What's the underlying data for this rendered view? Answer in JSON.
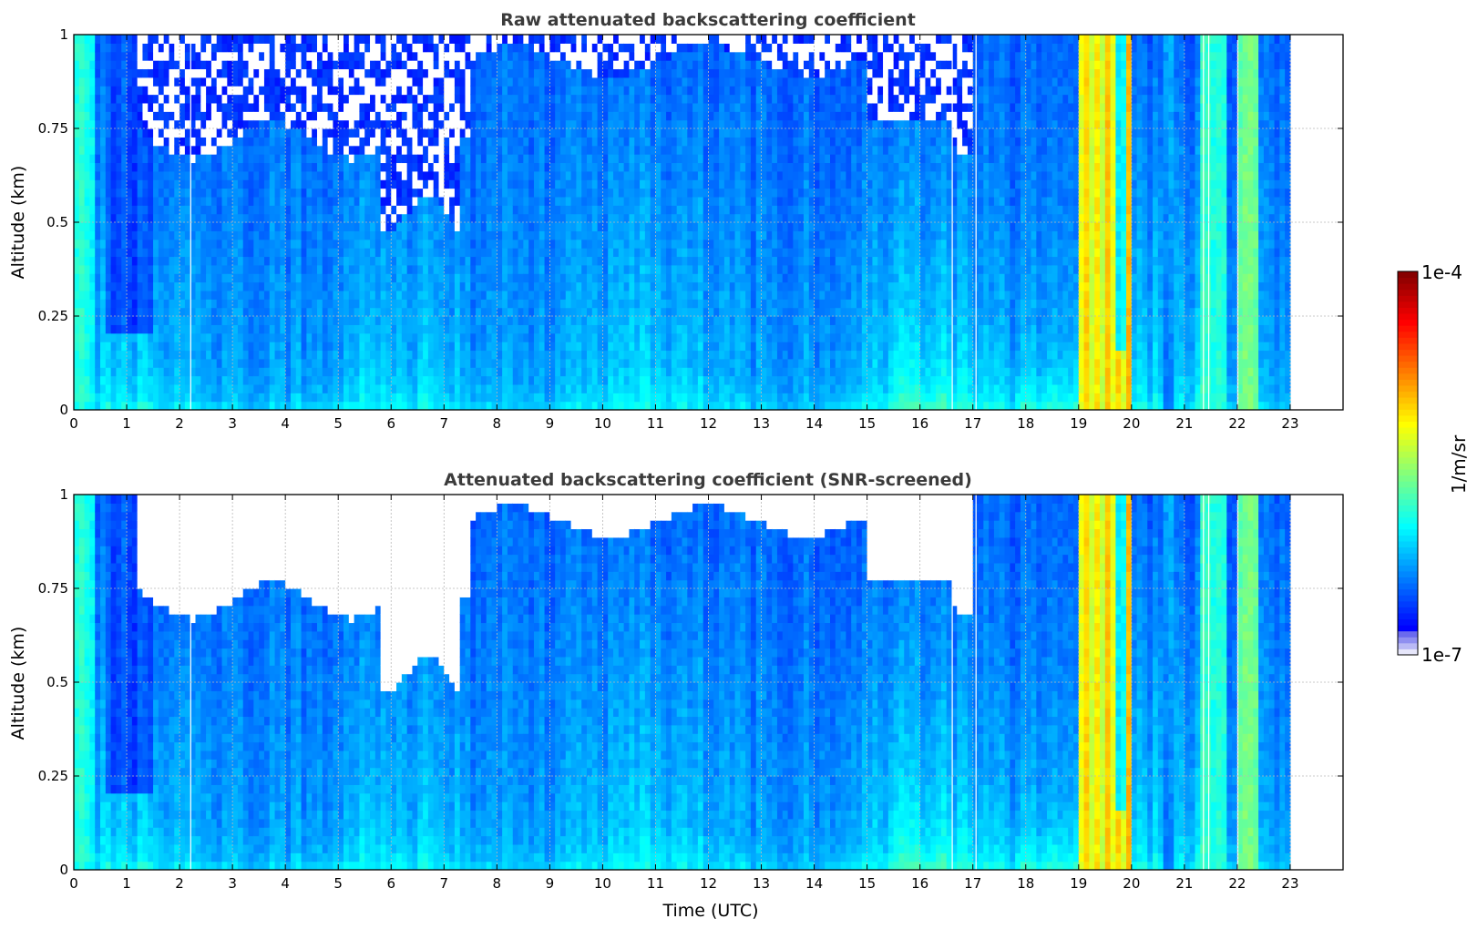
{
  "chart_data": [
    {
      "type": "heatmap",
      "title": "Raw attenuated backscattering coefficient",
      "xlabel": "",
      "ylabel": "Altitude (km)",
      "xlim": [
        0,
        24
      ],
      "ylim": [
        0,
        1
      ],
      "xticks": [
        "0",
        "1",
        "2",
        "3",
        "4",
        "5",
        "6",
        "7",
        "8",
        "9",
        "10",
        "11",
        "12",
        "13",
        "14",
        "15",
        "16",
        "17",
        "18",
        "19",
        "20",
        "21",
        "22",
        "23"
      ],
      "yticks": [
        "0",
        "0.25",
        "0.5",
        "0.75",
        "1"
      ],
      "data_end_hour": 23,
      "grid": true,
      "screened": false
    },
    {
      "type": "heatmap",
      "title": "Attenuated backscattering coefficient (SNR-screened)",
      "xlabel": "Time (UTC)",
      "ylabel": "Altitude (km)",
      "xlim": [
        0,
        24
      ],
      "ylim": [
        0,
        1
      ],
      "xticks": [
        "0",
        "1",
        "2",
        "3",
        "4",
        "5",
        "6",
        "7",
        "8",
        "9",
        "10",
        "11",
        "12",
        "13",
        "14",
        "15",
        "16",
        "17",
        "18",
        "19",
        "20",
        "21",
        "22",
        "23"
      ],
      "yticks": [
        "0",
        "0.25",
        "0.5",
        "0.75",
        "1"
      ],
      "data_end_hour": 23,
      "grid": true,
      "screened": true
    }
  ],
  "colorbar": {
    "max_label": "1e-4",
    "min_label": "1e-7",
    "unit_label": "1/m/sr",
    "scale": "log",
    "colormap": "jet"
  }
}
